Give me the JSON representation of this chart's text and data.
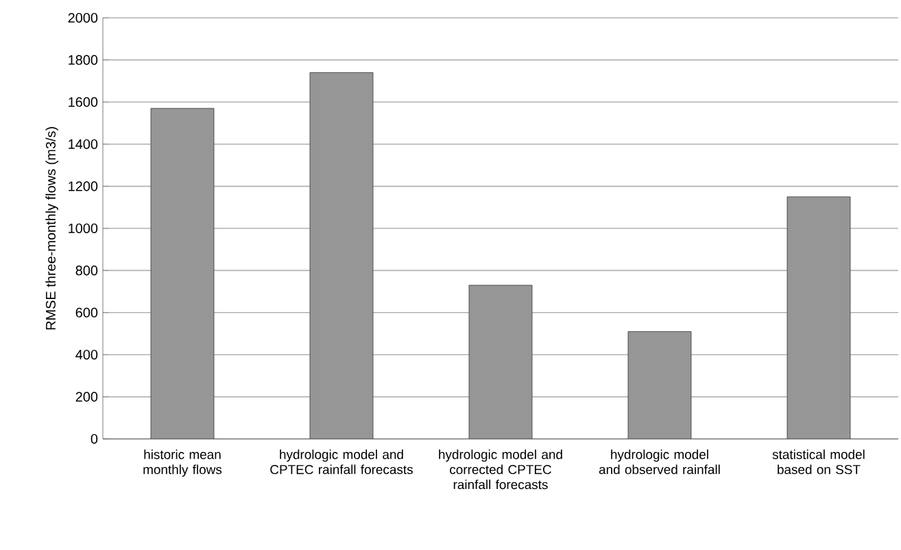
{
  "chart_data": {
    "type": "bar",
    "ylabel": "RMSE three-monthly flows (m3/s)",
    "categories": [
      "historic mean monthly flows",
      "hydrologic model and CPTEC rainfall forecasts",
      "hydrologic model and corrected CPTEC rainfall forecasts",
      "hydrologic model and observed rainfall",
      "statistical model based on SST"
    ],
    "values": [
      1570,
      1740,
      730,
      510,
      1150
    ],
    "color": "#969696",
    "ylim": [
      0,
      2000
    ],
    "yticks": [
      0,
      200,
      400,
      600,
      800,
      1000,
      1200,
      1400,
      1600,
      1800,
      2000
    ],
    "grid": "y"
  }
}
